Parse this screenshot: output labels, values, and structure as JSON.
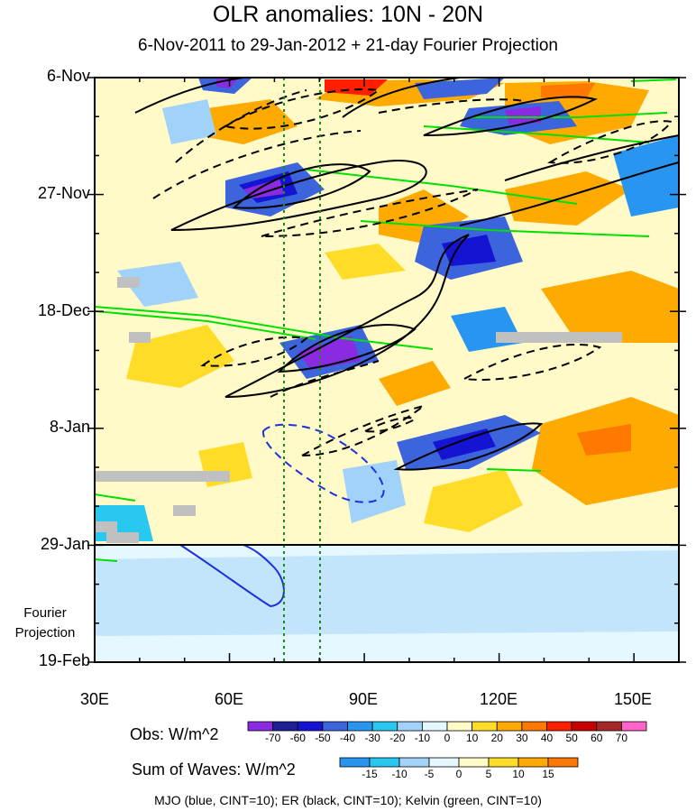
{
  "chart_data": {
    "type": "heatmap",
    "title": "OLR anomalies: 10N - 20N",
    "subtitle": "6-Nov-2011 to 29-Jan-2012 + 21-day Fourier Projection",
    "y_ticks": [
      "6-Nov",
      "27-Nov",
      "18-Dec",
      "8-Jan",
      "29-Jan",
      "19-Feb"
    ],
    "projection_label": [
      "Fourier",
      "Projection"
    ],
    "x_ticks": [
      "30E",
      "60E",
      "90E",
      "120E",
      "150E"
    ],
    "x_range": [
      30,
      160
    ],
    "obs_label": "Obs: W/m^2",
    "obs_levels": [
      "-70",
      "-60",
      "-50",
      "-40",
      "-30",
      "-20",
      "-10",
      "0",
      "10",
      "20",
      "30",
      "40",
      "50",
      "60",
      "70"
    ],
    "obs_colors": [
      "#8a2be2",
      "#1e1e96",
      "#1414d2",
      "#3c64dc",
      "#2896f0",
      "#28c8f0",
      "#a0d2fa",
      "#e6f8ff",
      "#fffac8",
      "#ffdc28",
      "#ffaa00",
      "#ff7800",
      "#ff1e00",
      "#c80000",
      "#a52828",
      "#ff64c8"
    ],
    "waves_label": "Sum of Waves: W/m^2",
    "waves_levels": [
      "-15",
      "-10",
      "-5",
      "0",
      "5",
      "10",
      "15"
    ],
    "waves_colors": [
      "#2896f0",
      "#28c8f0",
      "#a0d2fa",
      "#e6f8ff",
      "#fffac8",
      "#ffdc28",
      "#ffaa00",
      "#ff7800"
    ],
    "footer": "MJO (blue, CINT=10); ER (black, CINT=10); Kelvin (green, CINT=10)",
    "reference_longitudes": [
      72,
      80
    ]
  }
}
